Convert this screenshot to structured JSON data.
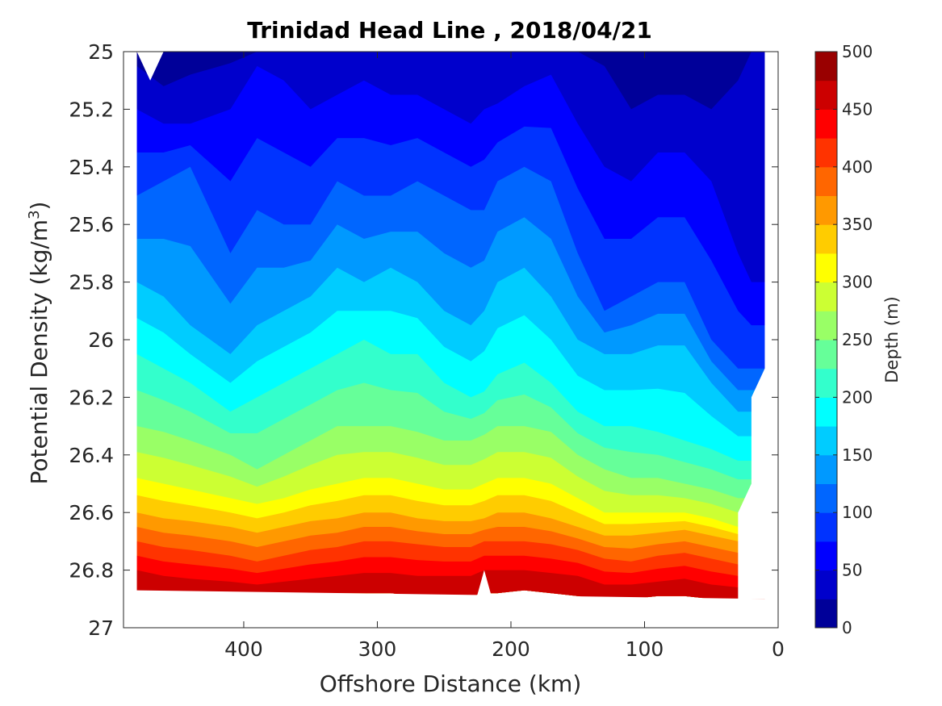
{
  "chart_data": {
    "type": "heatmap",
    "subtype": "filled-contour",
    "title": "Trinidad Head Line , 2018/04/21",
    "xlabel": "Offshore Distance (km)",
    "ylabel_main": "Potential Density (kg/m",
    "ylabel_sup": "3",
    "ylabel_close": ")",
    "colorbar_label": "Depth (m)",
    "xlim": [
      490,
      0
    ],
    "x_reversed": true,
    "ylim": [
      25,
      27
    ],
    "y_reversed": true,
    "x_ticks": [
      400,
      300,
      200,
      100,
      0
    ],
    "y_ticks": [
      "25",
      "25.2",
      "25.4",
      "25.6",
      "25.8",
      "26",
      "26.2",
      "26.4",
      "26.6",
      "26.8",
      "27"
    ],
    "colorbar_ticks": [
      0,
      50,
      100,
      150,
      200,
      250,
      300,
      350,
      400,
      450,
      500
    ],
    "contour_levels": [
      0,
      25,
      50,
      75,
      100,
      125,
      150,
      175,
      200,
      225,
      250,
      275,
      300,
      325,
      350,
      375,
      400,
      425,
      450,
      475,
      500
    ],
    "colormap": "jet",
    "grid": false,
    "colorbar_position": "right",
    "stations_km": [
      480,
      460,
      440,
      410,
      390,
      370,
      350,
      330,
      310,
      290,
      270,
      250,
      230,
      220,
      210,
      190,
      170,
      150,
      130,
      110,
      90,
      70,
      50,
      30,
      20,
      10
    ],
    "isopycnals": {
      "depths_m": [
        25,
        50,
        100,
        150,
        200,
        250,
        300,
        350,
        400,
        450,
        475
      ],
      "sigma": [
        [
          25.05,
          25.12,
          25.08,
          25.04,
          25.0,
          25.0,
          25.0,
          25.0,
          25.0,
          25.0,
          25.0,
          25.0,
          25.0,
          25.0,
          25.0,
          25.0,
          25.0,
          25.0,
          25.05,
          25.2,
          25.15,
          25.15,
          25.2,
          25.1,
          25.0,
          25.0
        ],
        [
          25.2,
          25.25,
          25.25,
          25.2,
          25.05,
          25.1,
          25.2,
          25.15,
          25.1,
          25.15,
          25.15,
          25.2,
          25.25,
          25.2,
          25.18,
          25.12,
          25.08,
          25.25,
          25.4,
          25.45,
          25.35,
          25.35,
          25.45,
          25.7,
          25.8,
          25.8
        ],
        [
          25.5,
          25.45,
          25.4,
          25.7,
          25.55,
          25.6,
          25.6,
          25.45,
          25.5,
          25.5,
          25.45,
          25.5,
          25.55,
          25.55,
          25.45,
          25.4,
          25.45,
          25.7,
          25.9,
          25.85,
          25.8,
          25.8,
          26.0,
          26.1,
          26.1,
          26.1
        ],
        [
          25.8,
          25.85,
          25.95,
          26.05,
          25.95,
          25.9,
          25.85,
          25.75,
          25.8,
          25.75,
          25.8,
          25.9,
          25.95,
          25.9,
          25.8,
          25.75,
          25.85,
          26.0,
          26.05,
          26.05,
          26.02,
          26.02,
          26.15,
          26.25,
          26.25,
          26.25
        ],
        [
          26.05,
          26.1,
          26.15,
          26.25,
          26.2,
          26.15,
          26.1,
          26.05,
          26.0,
          26.05,
          26.05,
          26.15,
          26.2,
          26.18,
          26.12,
          26.08,
          26.15,
          26.25,
          26.3,
          26.3,
          26.32,
          26.35,
          26.38,
          26.42,
          26.42,
          26.42
        ],
        [
          26.3,
          26.32,
          26.35,
          26.4,
          26.45,
          26.4,
          26.35,
          26.3,
          26.3,
          26.3,
          26.32,
          26.35,
          26.35,
          26.33,
          26.3,
          26.3,
          26.32,
          26.4,
          26.45,
          26.48,
          26.48,
          26.5,
          26.52,
          26.55,
          26.55,
          26.55
        ],
        [
          26.48,
          26.5,
          26.52,
          26.55,
          26.57,
          26.55,
          26.52,
          26.5,
          26.48,
          26.48,
          26.5,
          26.52,
          26.52,
          26.5,
          26.48,
          26.48,
          26.5,
          26.55,
          26.6,
          26.6,
          26.6,
          26.6,
          26.62,
          26.65,
          26.65,
          26.65
        ],
        [
          26.6,
          26.62,
          26.63,
          26.65,
          26.67,
          26.65,
          26.63,
          26.62,
          26.6,
          26.6,
          26.62,
          26.63,
          26.63,
          26.62,
          26.6,
          26.6,
          26.62,
          26.65,
          26.68,
          26.68,
          26.67,
          26.66,
          26.68,
          26.7,
          26.7,
          26.7
        ],
        [
          26.7,
          26.72,
          26.73,
          26.75,
          26.77,
          26.75,
          26.73,
          26.72,
          26.7,
          26.7,
          26.71,
          26.72,
          26.72,
          26.7,
          26.7,
          26.7,
          26.71,
          26.73,
          26.76,
          26.77,
          26.75,
          26.74,
          26.76,
          26.78,
          26.78,
          26.78
        ],
        [
          26.8,
          26.82,
          26.83,
          26.84,
          26.85,
          26.84,
          26.83,
          26.82,
          26.81,
          26.81,
          26.82,
          26.82,
          26.82,
          26.8,
          26.8,
          26.8,
          26.81,
          26.82,
          26.85,
          26.85,
          26.84,
          26.83,
          26.85,
          26.86,
          26.86,
          26.86
        ],
        [
          26.87,
          26.88,
          26.89,
          26.89,
          26.9,
          26.89,
          26.89,
          26.88,
          26.88,
          26.88,
          26.89,
          26.89,
          26.89,
          26.88,
          26.88,
          26.87,
          26.88,
          26.89,
          26.9,
          26.9,
          26.89,
          26.89,
          26.9,
          26.9,
          26.9,
          26.9
        ]
      ]
    }
  }
}
